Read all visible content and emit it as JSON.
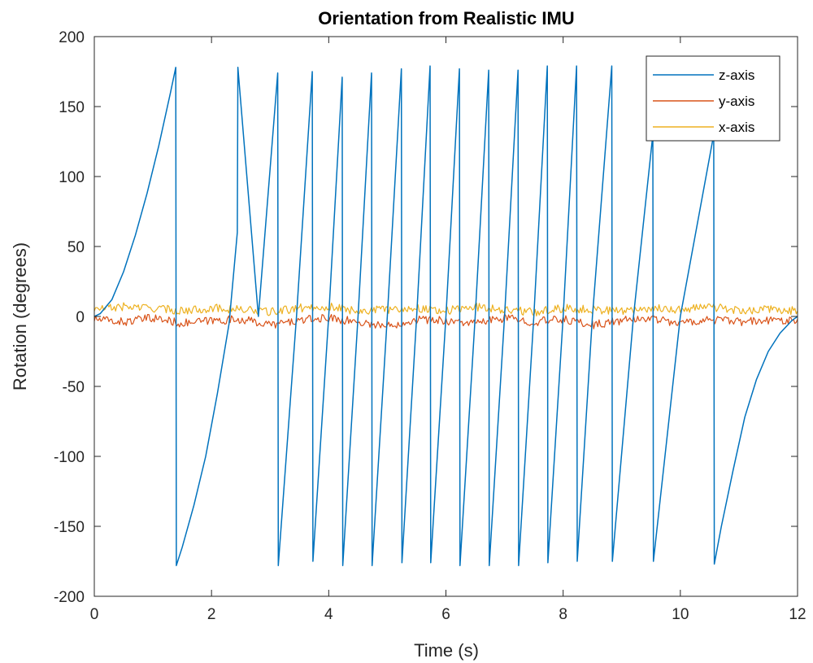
{
  "chart_data": {
    "type": "line",
    "title": "Orientation from Realistic IMU",
    "xlabel": "Time (s)",
    "ylabel": "Rotation (degrees)",
    "xlim": [
      0,
      12
    ],
    "ylim": [
      -200,
      200
    ],
    "xticks": [
      0,
      2,
      4,
      6,
      8,
      10,
      12
    ],
    "yticks": [
      -200,
      -150,
      -100,
      -50,
      0,
      50,
      100,
      150,
      200
    ],
    "legend_position": "top-right",
    "grid": false,
    "series": [
      {
        "name": "z-axis",
        "color": "#0072BD",
        "x": [
          0,
          0.1,
          0.3,
          0.5,
          0.7,
          0.9,
          1.1,
          1.3,
          1.39,
          1.4,
          1.5,
          1.7,
          1.9,
          2.1,
          2.3,
          2.44,
          2.45,
          2.8,
          3.13,
          3.14,
          3.45,
          3.72,
          3.73,
          4.0,
          4.23,
          4.24,
          4.5,
          4.73,
          4.74,
          5.0,
          5.24,
          5.25,
          5.5,
          5.73,
          5.74,
          6.0,
          6.23,
          6.24,
          6.5,
          6.73,
          6.74,
          7.0,
          7.23,
          7.24,
          7.5,
          7.73,
          7.74,
          8.0,
          8.23,
          8.24,
          8.5,
          8.83,
          8.84,
          9.2,
          9.53,
          9.54,
          10.0,
          10.57,
          10.58,
          10.7,
          10.9,
          11.1,
          11.3,
          11.5,
          11.7,
          11.9,
          12.0
        ],
        "y": [
          0,
          2,
          12,
          32,
          58,
          88,
          122,
          160,
          178,
          -178,
          -165,
          -135,
          -100,
          -55,
          -5,
          60,
          178,
          0,
          174,
          -178,
          0,
          175,
          -175,
          0,
          171,
          -178,
          0,
          174,
          -178,
          0,
          177,
          -176,
          0,
          179,
          -176,
          0,
          177,
          -178,
          0,
          176,
          -178,
          0,
          176,
          -178,
          0,
          179,
          -176,
          0,
          179,
          -175,
          0,
          179,
          -175,
          0,
          130,
          -175,
          0,
          130,
          -177,
          -150,
          -110,
          -72,
          -45,
          -25,
          -12,
          -3,
          0
        ]
      },
      {
        "name": "y-axis",
        "color": "#D95319",
        "x": [
          0,
          0.5,
          1,
          1.5,
          2,
          2.5,
          3,
          3.5,
          4,
          4.5,
          5,
          5.5,
          6,
          6.5,
          7,
          7.5,
          8,
          8.5,
          9,
          9.5,
          10,
          10.5,
          11,
          11.5,
          12
        ],
        "y": [
          -2,
          -4,
          -1,
          -5,
          -3,
          -2,
          -6,
          -3,
          -1,
          -4,
          -7,
          -2,
          -3,
          -5,
          -1,
          -4,
          -2,
          -6,
          -3,
          -1,
          -5,
          -2,
          -4,
          -3,
          -2
        ],
        "noise": 3
      },
      {
        "name": "x-axis",
        "color": "#EDB120",
        "x": [
          0,
          0.5,
          1,
          1.5,
          2,
          2.5,
          3,
          3.5,
          4,
          4.5,
          5,
          5.5,
          6,
          6.5,
          7,
          7.5,
          8,
          8.5,
          9,
          9.5,
          10,
          10.5,
          11,
          11.5,
          12
        ],
        "y": [
          5,
          7,
          6,
          4,
          6,
          5,
          3,
          6,
          7,
          4,
          5,
          6,
          4,
          7,
          5,
          3,
          6,
          5,
          4,
          6,
          5,
          7,
          4,
          5,
          4
        ],
        "noise": 3
      }
    ]
  }
}
